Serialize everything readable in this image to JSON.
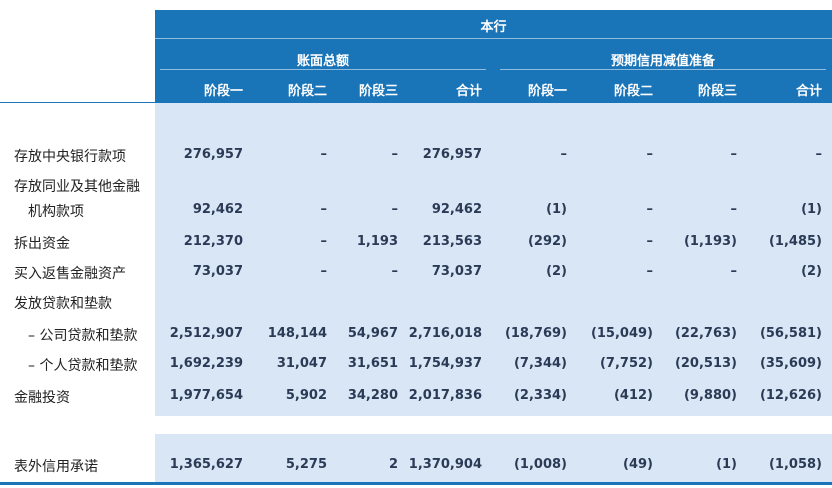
{
  "header": {
    "title": "本行",
    "group1": "账面总额",
    "group2": "预期信用减值准备",
    "columns": [
      "阶段一",
      "阶段二",
      "阶段三",
      "合计",
      "阶段一",
      "阶段二",
      "阶段三",
      "合计"
    ]
  },
  "rows": [
    {
      "label": "存放中央银行款项",
      "values": [
        "276,957",
        "–",
        "–",
        "276,957",
        "–",
        "–",
        "–",
        "–"
      ]
    },
    {
      "label": "存放同业及其他金融",
      "values": []
    },
    {
      "label": "机构款项",
      "values": [
        "92,462",
        "–",
        "–",
        "92,462",
        "(1)",
        "–",
        "–",
        "(1)"
      ]
    },
    {
      "label": "拆出资金",
      "values": [
        "212,370",
        "–",
        "1,193",
        "213,563",
        "(292)",
        "–",
        "(1,193)",
        "(1,485)"
      ]
    },
    {
      "label": "买入返售金融资产",
      "values": [
        "73,037",
        "–",
        "–",
        "73,037",
        "(2)",
        "–",
        "–",
        "(2)"
      ]
    },
    {
      "label": "发放贷款和垫款",
      "values": []
    },
    {
      "label": "– 公司贷款和垫款",
      "values": [
        "2,512,907",
        "148,144",
        "54,967",
        "2,716,018",
        "(18,769)",
        "(15,049)",
        "(22,763)",
        "(56,581)"
      ]
    },
    {
      "label": "– 个人贷款和垫款",
      "values": [
        "1,692,239",
        "31,047",
        "31,651",
        "1,754,937",
        "(7,344)",
        "(7,752)",
        "(20,513)",
        "(35,609)"
      ]
    },
    {
      "label": "金融投资",
      "values": [
        "1,977,654",
        "5,902",
        "34,280",
        "2,017,836",
        "(2,334)",
        "(412)",
        "(9,880)",
        "(12,626)"
      ]
    },
    {
      "label": "表外信用承诺",
      "values": [
        "1,365,627",
        "5,275",
        "2",
        "1,370,904",
        "(1,008)",
        "(49)",
        "(1)",
        "(1,058)"
      ]
    }
  ]
}
